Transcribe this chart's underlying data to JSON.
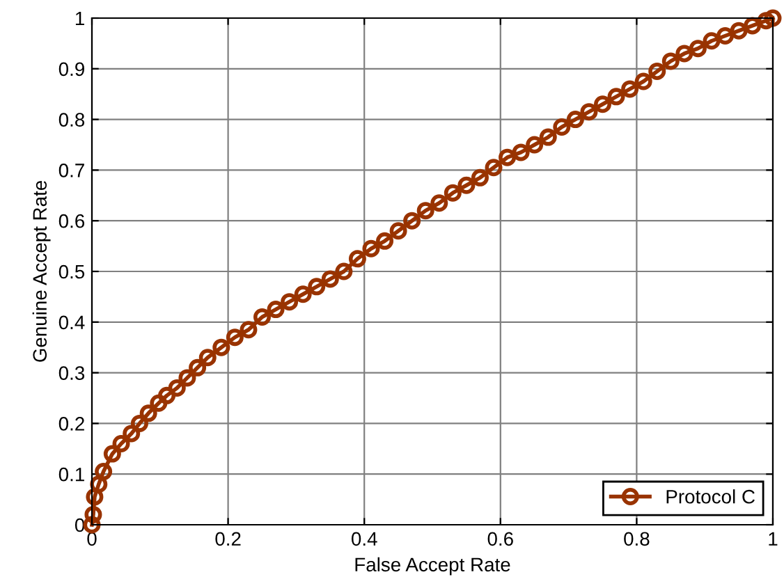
{
  "chart_data": {
    "type": "line",
    "xlabel": "False Accept Rate",
    "ylabel": "Genuine Accept Rate",
    "xlim": [
      0,
      1
    ],
    "ylim": [
      0,
      1
    ],
    "xticks": [
      0,
      0.2,
      0.4,
      0.6,
      0.8,
      1
    ],
    "yticks": [
      0,
      0.1,
      0.2,
      0.3,
      0.4,
      0.5,
      0.6,
      0.7,
      0.8,
      0.9,
      1
    ],
    "grid": true,
    "legend": "bottom right",
    "marker": "circle",
    "line_style": "solid",
    "series": [
      {
        "name": "Protocol C",
        "color": "#993300",
        "x": [
          0,
          0.002,
          0.004,
          0.01,
          0.017,
          0.03,
          0.043,
          0.058,
          0.07,
          0.083,
          0.098,
          0.11,
          0.125,
          0.14,
          0.155,
          0.17,
          0.19,
          0.21,
          0.23,
          0.25,
          0.27,
          0.29,
          0.31,
          0.33,
          0.35,
          0.37,
          0.39,
          0.41,
          0.43,
          0.45,
          0.47,
          0.49,
          0.51,
          0.53,
          0.55,
          0.57,
          0.59,
          0.61,
          0.63,
          0.65,
          0.67,
          0.69,
          0.71,
          0.73,
          0.75,
          0.77,
          0.79,
          0.81,
          0.83,
          0.85,
          0.87,
          0.89,
          0.91,
          0.93,
          0.95,
          0.97,
          0.99,
          1
        ],
        "values": [
          0,
          0.02,
          0.055,
          0.08,
          0.105,
          0.14,
          0.16,
          0.18,
          0.2,
          0.22,
          0.24,
          0.255,
          0.27,
          0.29,
          0.31,
          0.33,
          0.35,
          0.37,
          0.385,
          0.41,
          0.425,
          0.44,
          0.455,
          0.47,
          0.485,
          0.5,
          0.525,
          0.545,
          0.56,
          0.58,
          0.6,
          0.62,
          0.635,
          0.655,
          0.67,
          0.685,
          0.705,
          0.725,
          0.735,
          0.75,
          0.765,
          0.785,
          0.8,
          0.815,
          0.83,
          0.845,
          0.86,
          0.875,
          0.895,
          0.915,
          0.93,
          0.94,
          0.955,
          0.965,
          0.975,
          0.985,
          0.995,
          1
        ]
      }
    ]
  }
}
